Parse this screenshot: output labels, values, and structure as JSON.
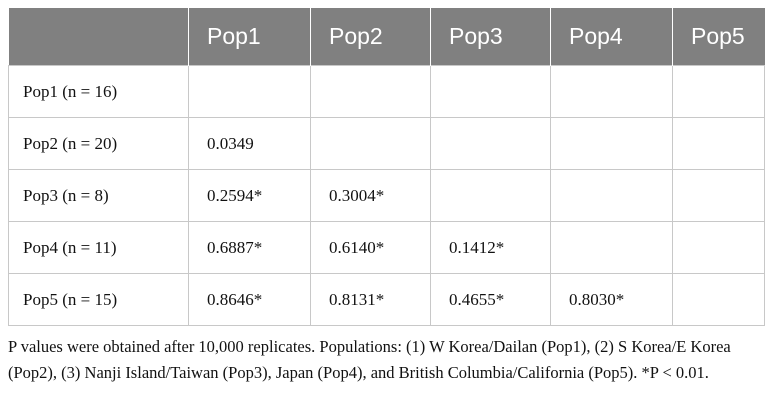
{
  "table": {
    "columns": [
      "Pop1",
      "Pop2",
      "Pop3",
      "Pop4",
      "Pop5"
    ],
    "rows": [
      {
        "label": "Pop1 (n = 16)",
        "values": []
      },
      {
        "label": "Pop2 (n = 20)",
        "values": [
          "0.0349"
        ]
      },
      {
        "label": "Pop3 (n = 8)",
        "values": [
          "0.2594*",
          "0.3004*"
        ]
      },
      {
        "label": "Pop4 (n = 11)",
        "values": [
          "0.6887*",
          "0.6140*",
          "0.1412*"
        ]
      },
      {
        "label": "Pop5 (n = 15)",
        "values": [
          "0.8646*",
          "0.8131*",
          "0.4655*",
          "0.8030*"
        ]
      }
    ]
  },
  "note": "P values were obtained after 10,000 replicates. Populations: (1) W Korea/Dailan (Pop1), (2) S Korea/E Korea (Pop2), (3) Nanji Island/Taiwan (Pop3), Japan (Pop4), and British Columbia/California (Pop5). *P < 0.01."
}
